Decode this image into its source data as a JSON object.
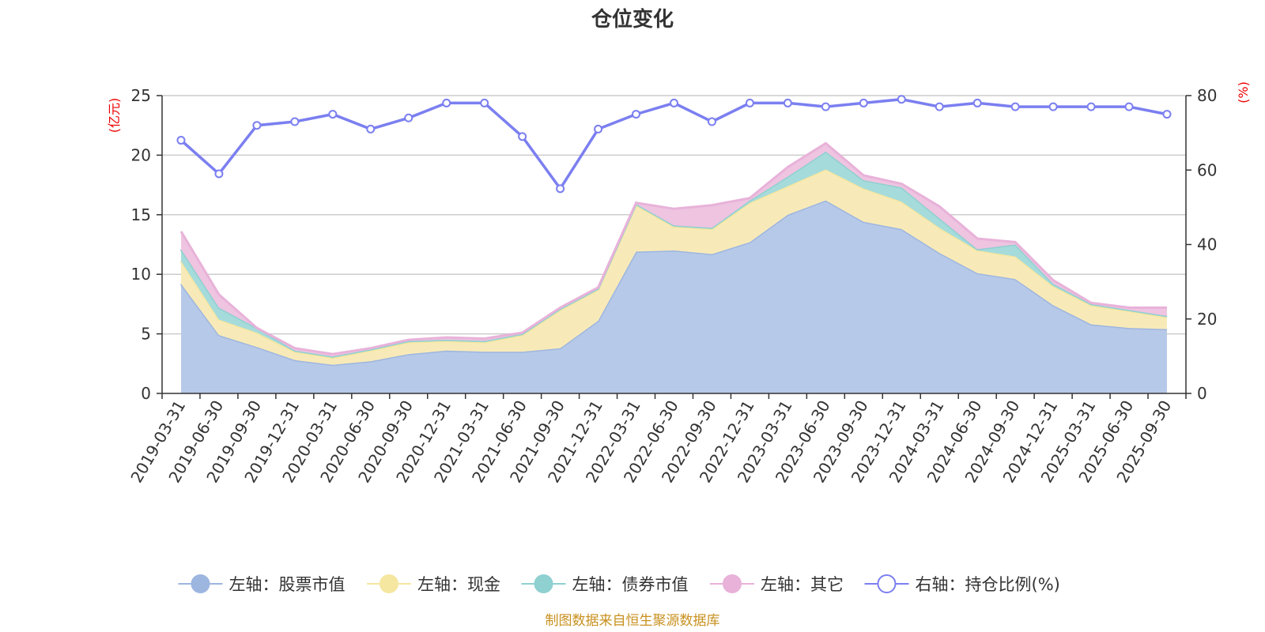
{
  "chart_data": {
    "type": "area",
    "title": "仓位变化",
    "left_axis_unit": "(亿元)",
    "right_axis_unit": "(%)",
    "ylim_left": [
      0,
      25
    ],
    "yticks_left": [
      0,
      5,
      10,
      15,
      20,
      25
    ],
    "ylim_right": [
      0,
      80
    ],
    "yticks_right": [
      0,
      20,
      40,
      60,
      80
    ],
    "categories": [
      "2019-03-31",
      "2019-06-30",
      "2019-09-30",
      "2019-12-31",
      "2020-03-31",
      "2020-06-30",
      "2020-09-30",
      "2020-12-31",
      "2021-03-31",
      "2021-06-30",
      "2021-09-30",
      "2021-12-31",
      "2022-03-31",
      "2022-06-30",
      "2022-09-30",
      "2022-12-31",
      "2023-03-31",
      "2023-06-30",
      "2023-09-30",
      "2023-12-31",
      "2024-03-31",
      "2024-06-30",
      "2024-09-30",
      "2024-12-31",
      "2025-03-31",
      "2025-06-30",
      "2025-09-30"
    ],
    "stacked_series": [
      {
        "name": "左轴：股票市值",
        "axis": "left",
        "color": "#9db6e0",
        "fill": "#b7c9e8",
        "values": [
          9.2,
          4.9,
          3.9,
          2.8,
          2.4,
          2.7,
          3.3,
          3.6,
          3.5,
          3.5,
          3.8,
          6.1,
          11.9,
          12.0,
          11.7,
          12.7,
          15.0,
          16.2,
          14.4,
          13.8,
          11.8,
          10.1,
          9.6,
          7.4,
          5.8,
          5.5,
          5.4
        ]
      },
      {
        "name": "左轴：现金",
        "axis": "left",
        "color": "#f5e6a0",
        "fill": "#f8eab8",
        "values": [
          1.9,
          1.3,
          1.2,
          0.7,
          0.6,
          0.9,
          1.0,
          0.8,
          0.8,
          1.4,
          3.2,
          2.6,
          3.9,
          2.0,
          2.1,
          3.3,
          2.4,
          2.6,
          2.8,
          2.3,
          2.1,
          1.9,
          1.9,
          1.6,
          1.6,
          1.4,
          1.0
        ]
      },
      {
        "name": "左轴：债券市值",
        "axis": "left",
        "color": "#8fd0d1",
        "fill": "#a6dbdb",
        "values": [
          1.0,
          1.0,
          0.4,
          0.1,
          0.1,
          0.1,
          0.1,
          0.1,
          0.1,
          0.1,
          0.1,
          0.1,
          0.1,
          0.1,
          0.1,
          0.2,
          0.8,
          1.5,
          0.7,
          1.2,
          0.8,
          0.1,
          1.0,
          0.2,
          0.1,
          0.1,
          0.1
        ]
      },
      {
        "name": "左轴：其它",
        "axis": "left",
        "color": "#e8b2d9",
        "fill": "#eec4e0",
        "values": [
          1.5,
          1.1,
          0.0,
          0.2,
          0.2,
          0.1,
          0.1,
          0.2,
          0.2,
          0.1,
          0.1,
          0.1,
          0.1,
          1.4,
          1.9,
          0.2,
          0.8,
          0.7,
          0.4,
          0.3,
          1.0,
          0.9,
          0.2,
          0.3,
          0.1,
          0.2,
          0.7
        ]
      }
    ],
    "line_series": {
      "name": "右轴：持仓比例(%)",
      "axis": "right",
      "color": "#7b7ff0",
      "values": [
        68,
        59,
        72,
        73,
        75,
        71,
        74,
        78,
        78,
        69,
        55,
        71,
        75,
        78,
        73,
        78,
        78,
        77,
        78,
        79,
        77,
        78,
        77,
        77,
        77,
        77,
        75
      ]
    },
    "source": "制图数据来自恒生聚源数据库"
  }
}
